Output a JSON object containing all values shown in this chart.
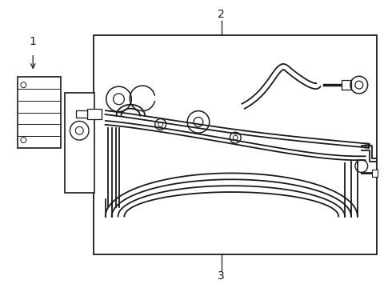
{
  "background_color": "#ffffff",
  "line_color": "#1a1a1a",
  "label_color": "#1a1a1a",
  "fig_width": 4.9,
  "fig_height": 3.6,
  "dpi": 100
}
